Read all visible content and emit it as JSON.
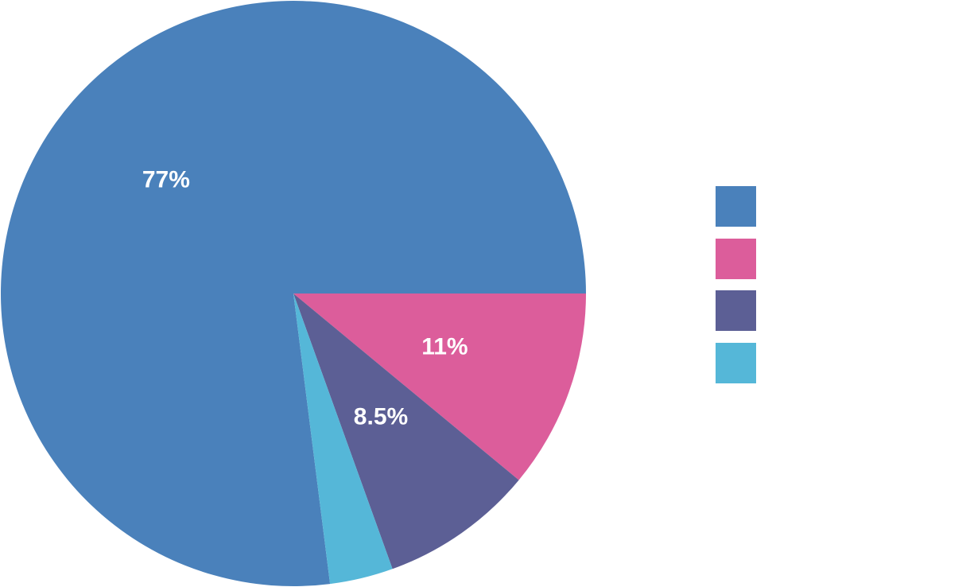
{
  "chart_data": {
    "type": "pie",
    "title": "",
    "legend_position": "right",
    "slices": [
      {
        "value": 77.0,
        "label": "77%",
        "color": "#4a81bb"
      },
      {
        "value": 11.0,
        "label": "11%",
        "color": "#dc5d9b"
      },
      {
        "value": 8.5,
        "label": "8.5%",
        "color": "#5c5f95"
      },
      {
        "value": 3.5,
        "label": "",
        "color": "#55b7d8"
      }
    ]
  }
}
